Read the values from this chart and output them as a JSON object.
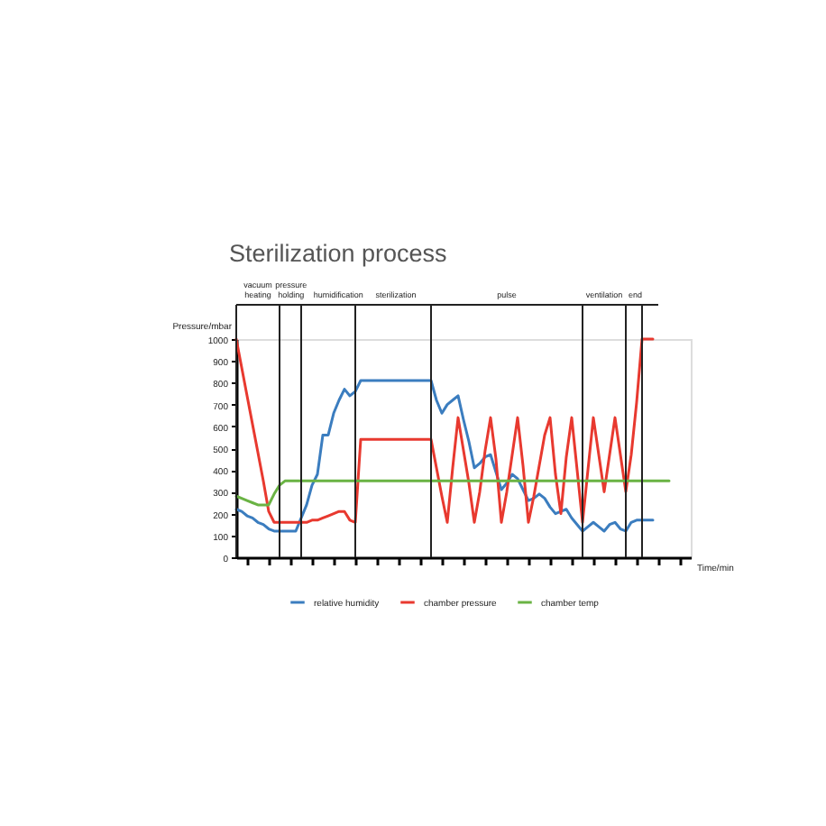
{
  "chart_data": {
    "type": "line",
    "title": "Sterilization process",
    "xlabel": "Time/min",
    "ylabel": "Pressure/mbar",
    "categories": [
      null,
      null,
      null,
      null,
      null,
      null,
      null,
      null,
      null,
      null,
      null,
      null,
      null,
      null,
      null,
      null,
      null,
      null,
      null,
      null,
      null,
      null,
      null,
      null,
      null,
      null,
      null,
      null,
      null,
      null,
      null,
      null,
      null,
      null,
      null,
      null,
      null,
      null,
      null,
      null,
      null,
      null,
      null,
      null,
      null,
      null,
      null,
      null,
      null,
      null,
      null,
      null,
      null,
      null,
      null,
      null,
      null,
      null,
      null,
      null,
      null,
      null,
      null,
      null,
      null,
      null,
      null,
      null,
      null,
      null,
      null,
      null,
      null,
      null,
      null,
      null,
      null,
      null,
      null,
      null,
      null,
      null,
      null,
      null,
      null
    ],
    "series": [
      {
        "name": "relative humidity",
        "color": "#3b7dbf",
        "values": [
          220,
          210,
          190,
          180,
          160,
          150,
          130,
          120,
          120,
          120,
          120,
          120,
          180,
          240,
          330,
          380,
          560,
          560,
          660,
          720,
          770,
          740,
          760,
          810,
          810,
          810,
          810,
          810,
          810,
          810,
          810,
          810,
          810,
          810,
          810,
          810,
          810,
          720,
          660,
          700,
          720,
          740,
          630,
          530,
          410,
          430,
          460,
          470,
          390,
          310,
          340,
          380,
          360,
          310,
          260,
          270,
          290,
          270,
          230,
          200,
          210,
          220,
          180,
          150,
          120,
          140,
          160,
          140,
          120,
          150,
          160,
          130,
          120,
          160,
          170,
          170,
          170,
          170,
          null,
          null,
          null,
          null,
          null,
          null,
          null
        ]
      },
      {
        "name": "chamber pressure",
        "color": "#e8392f",
        "values": [
          1000,
          870,
          740,
          610,
          480,
          350,
          210,
          160,
          160,
          160,
          160,
          160,
          160,
          160,
          170,
          170,
          180,
          190,
          200,
          210,
          210,
          170,
          160,
          540,
          540,
          540,
          540,
          540,
          540,
          540,
          540,
          540,
          540,
          540,
          540,
          540,
          540,
          410,
          280,
          160,
          410,
          640,
          490,
          340,
          160,
          300,
          490,
          640,
          450,
          160,
          300,
          470,
          640,
          420,
          160,
          280,
          420,
          560,
          640,
          380,
          200,
          460,
          640,
          400,
          160,
          400,
          640,
          470,
          300,
          470,
          640,
          470,
          300,
          470,
          710,
          1000,
          1000,
          1000,
          null,
          null,
          null,
          null,
          null,
          null,
          null
        ]
      },
      {
        "name": "chamber temp",
        "color": "#6ab344",
        "values": [
          280,
          270,
          260,
          250,
          240,
          240,
          240,
          290,
          330,
          350,
          350,
          350,
          350,
          350,
          350,
          350,
          350,
          350,
          350,
          350,
          350,
          350,
          350,
          350,
          350,
          350,
          350,
          350,
          350,
          350,
          350,
          350,
          350,
          350,
          350,
          350,
          350,
          350,
          350,
          350,
          350,
          350,
          350,
          350,
          350,
          350,
          350,
          350,
          350,
          350,
          350,
          350,
          350,
          350,
          350,
          350,
          350,
          350,
          350,
          350,
          350,
          350,
          350,
          350,
          350,
          350,
          350,
          350,
          350,
          350,
          350,
          350,
          350,
          350,
          350,
          350,
          350,
          350,
          350,
          350,
          350,
          null,
          null,
          null,
          null
        ]
      }
    ],
    "ylim": [
      0,
      1000
    ],
    "yticks": [
      0,
      100,
      200,
      300,
      400,
      500,
      600,
      700,
      800,
      900,
      1000
    ],
    "annotations": [
      "vacuum heating",
      "pressure holding",
      "humidification",
      "sterilization",
      "pulse",
      "ventilation",
      "end"
    ],
    "tick_labels": "y",
    "legend": "bottom"
  }
}
